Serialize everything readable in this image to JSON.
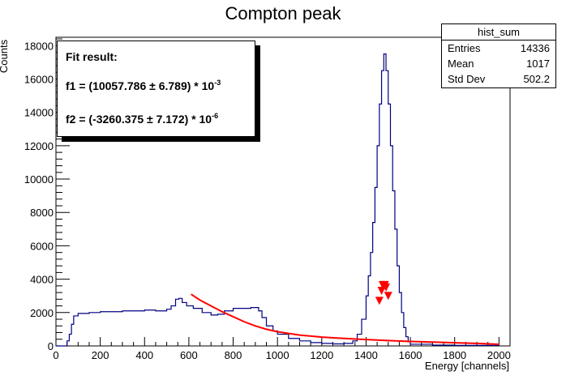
{
  "chart_data": {
    "type": "histogram",
    "title": "Compton peak",
    "xlabel": "Energy [channels]",
    "ylabel": "Counts",
    "xlim": [
      0,
      2050
    ],
    "ylim": [
      0,
      18500
    ],
    "x_ticks": [
      0,
      200,
      400,
      600,
      800,
      1000,
      1200,
      1400,
      1600,
      1800,
      2000
    ],
    "y_ticks": [
      0,
      2000,
      4000,
      6000,
      8000,
      10000,
      12000,
      14000,
      16000,
      18000
    ],
    "series": [
      {
        "name": "hist_sum",
        "kind": "step",
        "color": "#000080",
        "x": [
          0,
          40,
          50,
          60,
          70,
          80,
          100,
          150,
          200,
          250,
          300,
          350,
          400,
          450,
          500,
          520,
          540,
          555,
          570,
          590,
          620,
          660,
          700,
          730,
          760,
          800,
          840,
          880,
          900,
          915,
          930,
          950,
          980,
          1000,
          1050,
          1100,
          1150,
          1200,
          1250,
          1300,
          1340,
          1360,
          1380,
          1400,
          1410,
          1420,
          1430,
          1440,
          1450,
          1460,
          1470,
          1480,
          1490,
          1500,
          1510,
          1520,
          1530,
          1540,
          1550,
          1560,
          1570,
          1580,
          1590,
          1600,
          1700,
          1800,
          2000
        ],
        "y": [
          0,
          0,
          300,
          700,
          1300,
          1800,
          1950,
          2000,
          2050,
          2050,
          2100,
          2100,
          2150,
          2100,
          2200,
          2400,
          2800,
          2850,
          2600,
          2400,
          2250,
          2000,
          1850,
          1900,
          2100,
          2250,
          2250,
          2300,
          2300,
          2100,
          1700,
          1200,
          900,
          700,
          450,
          300,
          200,
          150,
          120,
          150,
          300,
          700,
          1600,
          3000,
          4200,
          5600,
          7400,
          9500,
          12000,
          14500,
          16500,
          17500,
          16500,
          14500,
          12000,
          9300,
          7000,
          4800,
          3200,
          2000,
          1100,
          550,
          250,
          100,
          50,
          30,
          0
        ]
      },
      {
        "name": "fit",
        "kind": "curve",
        "color": "#ff0000",
        "x": [
          610,
          650,
          700,
          750,
          800,
          850,
          900,
          950,
          1000,
          1100,
          1200,
          1300,
          1400,
          1500,
          1600,
          1700,
          1800,
          1900,
          2000
        ],
        "y": [
          3100,
          2750,
          2400,
          2050,
          1750,
          1450,
          1200,
          1000,
          850,
          650,
          530,
          450,
          380,
          320,
          270,
          230,
          190,
          150,
          100
        ]
      }
    ],
    "markers": {
      "color": "#ff0000",
      "shape": "triangle-down",
      "x": [
        1460,
        1470,
        1480,
        1490,
        1500,
        1475,
        1485
      ],
      "y": [
        2700,
        3300,
        3600,
        3500,
        3000,
        3650,
        3650
      ]
    }
  },
  "stats": {
    "name": "hist_sum",
    "rows": [
      {
        "label": "Entries",
        "value": "14336"
      },
      {
        "label": "Mean",
        "value": "1017"
      },
      {
        "label": "Std Dev",
        "value": "502.2"
      }
    ]
  },
  "fit": {
    "heading": "Fit result:",
    "f1_text": "f1 = (10057.786 ± 6.789) * 10",
    "f1_exp": "-3",
    "f2_text": "f2 = (-3260.375 ± 7.172) * 10",
    "f2_exp": "-6"
  }
}
